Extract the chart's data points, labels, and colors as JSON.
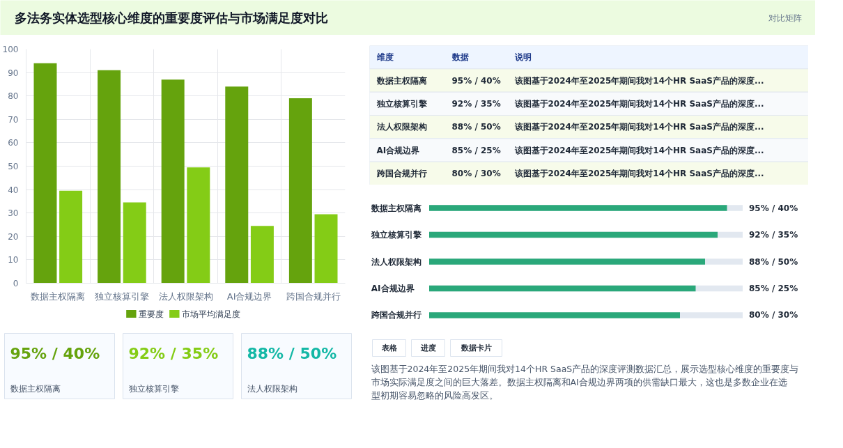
{
  "chart_data": [
    {
      "type": "bar",
      "title": "多法务实体选型核心维度的重要度评估与市场满足度对比",
      "annotations": [
        "对比矩阵"
      ],
      "categories": [
        "数据主权隔离",
        "独立核算引擎",
        "法人权限架构",
        "AI合规边界",
        "跨国合规并行"
      ],
      "series": [
        {
          "name": "重要度",
          "color": "#65a30d",
          "values": [
            94,
            91,
            87,
            84,
            79
          ]
        },
        {
          "name": "市场平均满足度",
          "color": "#84cc16",
          "values": [
            39.5,
            34.5,
            49.5,
            24.5,
            29.5
          ]
        }
      ],
      "ylim": [
        0,
        100
      ],
      "yticks": [
        0,
        10,
        20,
        30,
        40,
        50,
        60,
        70,
        80,
        90,
        100
      ],
      "grid": true,
      "legend": "bottom"
    },
    {
      "type": "other",
      "categories": [
        "维度",
        "数据",
        "说明"
      ],
      "cell_labels": [
        [
          "数据主权隔离",
          "95% / 40%",
          "该图基于2024年至2025年期间我对14个HR SaaS产品的深度..."
        ],
        [
          "独立核算引擎",
          "92% / 35%",
          "该图基于2024年至2025年期间我对14个HR SaaS产品的深度..."
        ],
        [
          "法人权限架构",
          "88% / 50%",
          "该图基于2024年至2025年期间我对14个HR SaaS产品的深度..."
        ],
        [
          "AI合规边界",
          "85% / 25%",
          "该图基于2024年至2025年期间我对14个HR SaaS产品的深度..."
        ],
        [
          "跨国合规并行",
          "80% / 30%",
          "该图基于2024年至2025年期间我对14个HR SaaS产品的深度..."
        ]
      ]
    },
    {
      "type": "bar",
      "orientation": "horizontal",
      "categories": [
        "数据主权隔离",
        "独立核算引擎",
        "法人权限架构",
        "AI合规边界",
        "跨国合规并行"
      ],
      "values": [
        95,
        92,
        88,
        85,
        80
      ],
      "value_labels": [
        "95% / 40%",
        "92% / 35%",
        "88% / 50%",
        "85% / 25%",
        "80% / 30%"
      ],
      "color": "#2aa87a",
      "xlim": [
        0,
        100
      ],
      "tick_labels": false
    },
    {
      "type": "other",
      "categories": [
        "数据主权隔离",
        "独立核算引擎",
        "法人权限架构"
      ],
      "value_labels": [
        "95% / 40%",
        "92% / 35%",
        "88% / 50%"
      ]
    },
    {
      "type": "other",
      "categories": [
        "表格",
        "进度",
        "数据卡片"
      ],
      "annotations": [
        "该图基于2024年至2025年期间我对14个HR SaaS产品的深度评测数据汇总，展示选型核心维度的重要度与市场实际满足度之间的巨大落差。数据主权隔离和AI合规边界两项的供需缺口最大，这也是多数企业在选型初期容易忽略的风险高发区。"
      ]
    }
  ]
}
